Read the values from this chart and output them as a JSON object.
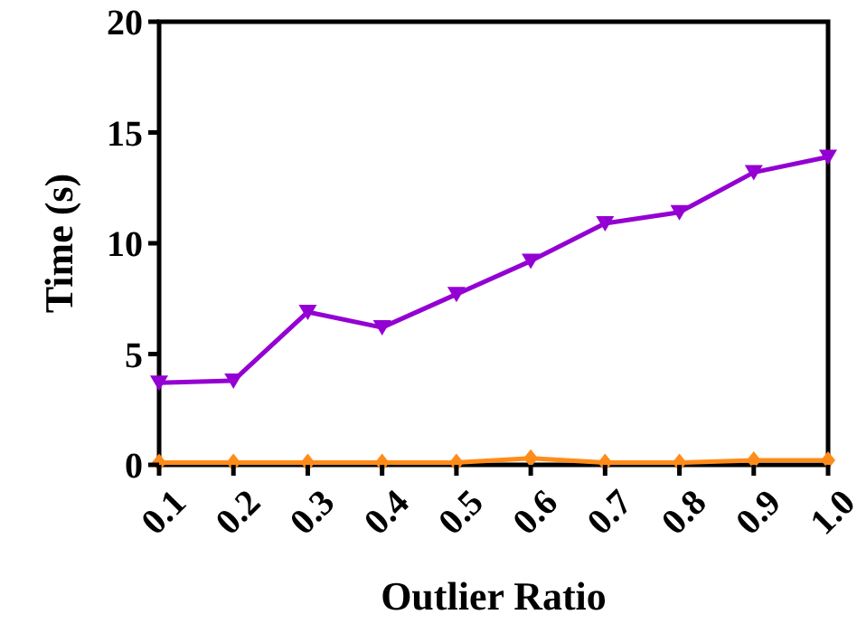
{
  "chart_data": {
    "type": "line",
    "xlabel": "Outlier Ratio",
    "ylabel": "Time (s)",
    "x": [
      0.1,
      0.2,
      0.3,
      0.4,
      0.5,
      0.6,
      0.7,
      0.8,
      0.9,
      1.0
    ],
    "xlim": [
      0.1,
      1.0
    ],
    "xticks": [
      0.1,
      0.2,
      0.3,
      0.4,
      0.5,
      0.6,
      0.7,
      0.8,
      0.9,
      {
        "value": 1.0,
        "label": "1.0"
      }
    ],
    "ylim": [
      0,
      20
    ],
    "yticks": [
      0,
      5,
      10,
      15,
      20
    ],
    "grid": false,
    "series": [
      {
        "color": "#9400d3",
        "marker": "triangle",
        "values": [
          3.7,
          3.8,
          6.9,
          6.2,
          7.7,
          9.2,
          10.9,
          11.4,
          13.2,
          13.9
        ]
      },
      {
        "color": "#ff8c1a",
        "marker": "diamond",
        "values": [
          0.1,
          0.1,
          0.1,
          0.1,
          0.1,
          0.3,
          0.1,
          0.1,
          0.2,
          0.2
        ]
      }
    ]
  }
}
